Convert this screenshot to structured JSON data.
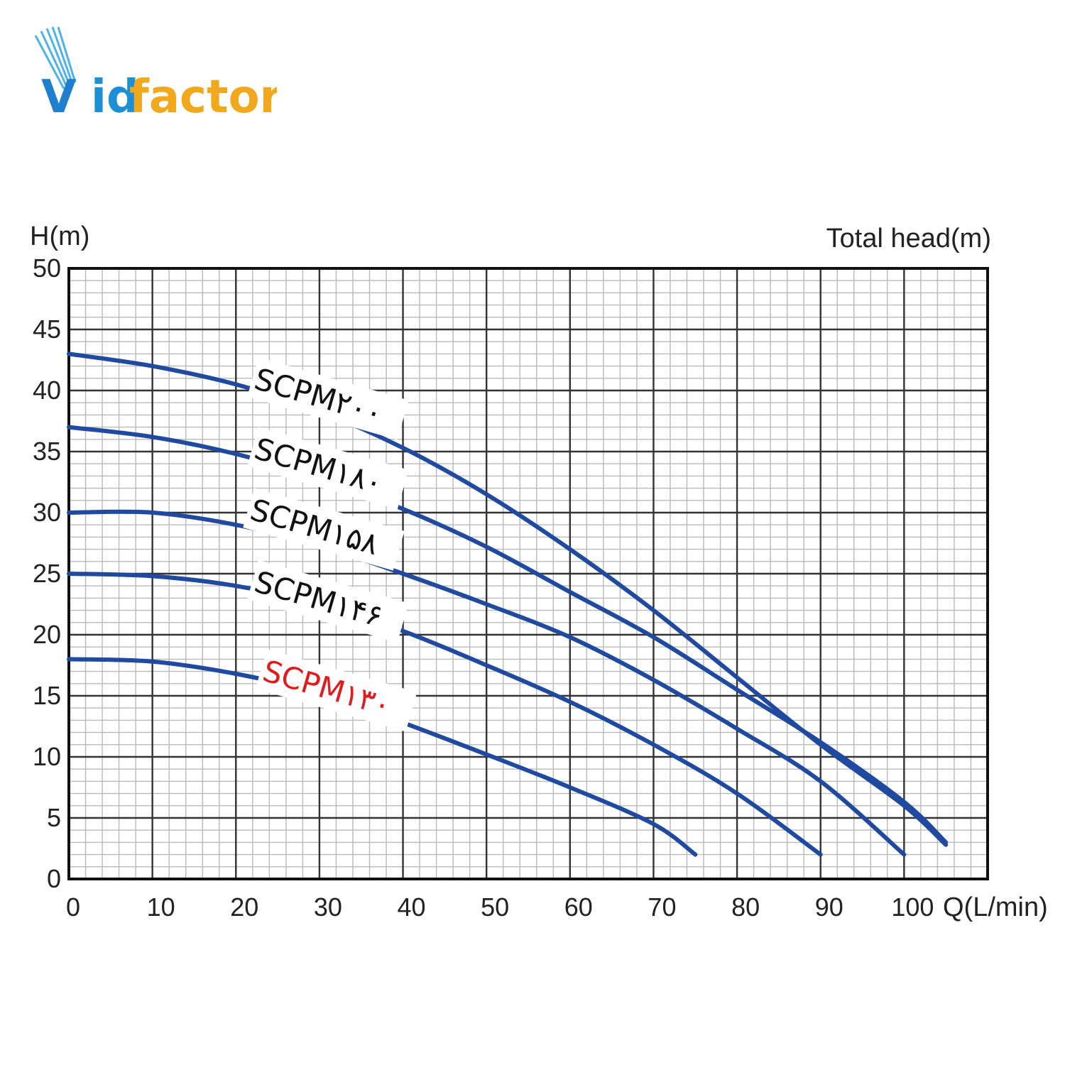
{
  "logo": {
    "brand_initial": "V",
    "brand_rest_id": "id",
    "brand_rest_factor": "factor",
    "colors": {
      "blue": "#1d8fd6",
      "yellow": "#f2a81d"
    }
  },
  "chart_data": {
    "type": "line",
    "ylabel": "H(m)",
    "title": "Total head(m)",
    "xlabel": "Q(L/min)",
    "xlim": [
      0,
      110
    ],
    "ylim": [
      0,
      50
    ],
    "x_ticks": [
      "0",
      "10",
      "20",
      "30",
      "40",
      "50",
      "60",
      "70",
      "80",
      "90",
      "100"
    ],
    "y_ticks": [
      "0",
      "5",
      "10",
      "15",
      "20",
      "25",
      "30",
      "35",
      "40",
      "45",
      "50"
    ],
    "grid": true,
    "line_color": "#1f4aa0",
    "series": [
      {
        "name": "SCPM۲۰۰",
        "label_color": "#111111",
        "points": [
          [
            0,
            43.0
          ],
          [
            10,
            42.0
          ],
          [
            20,
            40.5
          ],
          [
            30,
            38.3
          ],
          [
            40,
            35.3
          ],
          [
            50,
            31.5
          ],
          [
            60,
            27.0
          ],
          [
            70,
            22.0
          ],
          [
            80,
            16.5
          ],
          [
            90,
            11.0
          ],
          [
            100,
            6.0
          ],
          [
            105,
            2.8
          ]
        ]
      },
      {
        "name": "SCPM۱۸۰",
        "label_color": "#111111",
        "points": [
          [
            0,
            37.0
          ],
          [
            10,
            36.2
          ],
          [
            20,
            34.8
          ],
          [
            30,
            32.8
          ],
          [
            40,
            30.3
          ],
          [
            50,
            27.2
          ],
          [
            60,
            23.5
          ],
          [
            70,
            19.8
          ],
          [
            80,
            15.5
          ],
          [
            90,
            11.2
          ],
          [
            100,
            6.3
          ],
          [
            105,
            3.0
          ]
        ]
      },
      {
        "name": "SCPM۱۵۸",
        "label_color": "#111111",
        "points": [
          [
            0,
            30.0
          ],
          [
            10,
            30.0
          ],
          [
            20,
            29.0
          ],
          [
            30,
            27.3
          ],
          [
            40,
            25.0
          ],
          [
            50,
            22.5
          ],
          [
            60,
            19.8
          ],
          [
            70,
            16.3
          ],
          [
            80,
            12.3
          ],
          [
            90,
            8.0
          ],
          [
            100,
            2.0
          ]
        ]
      },
      {
        "name": "SCPM۱۴۶",
        "label_color": "#111111",
        "points": [
          [
            0,
            25.0
          ],
          [
            10,
            24.8
          ],
          [
            20,
            24.0
          ],
          [
            30,
            22.5
          ],
          [
            40,
            20.3
          ],
          [
            50,
            17.5
          ],
          [
            60,
            14.5
          ],
          [
            70,
            11.0
          ],
          [
            80,
            7.0
          ],
          [
            90,
            2.0
          ]
        ]
      },
      {
        "name": "SCPM۱۳۰",
        "label_color": "#e01b1b",
        "points": [
          [
            0,
            18.0
          ],
          [
            10,
            17.8
          ],
          [
            20,
            16.8
          ],
          [
            30,
            15.2
          ],
          [
            40,
            12.8
          ],
          [
            50,
            10.2
          ],
          [
            60,
            7.5
          ],
          [
            70,
            4.5
          ],
          [
            75,
            2.0
          ]
        ]
      }
    ]
  }
}
